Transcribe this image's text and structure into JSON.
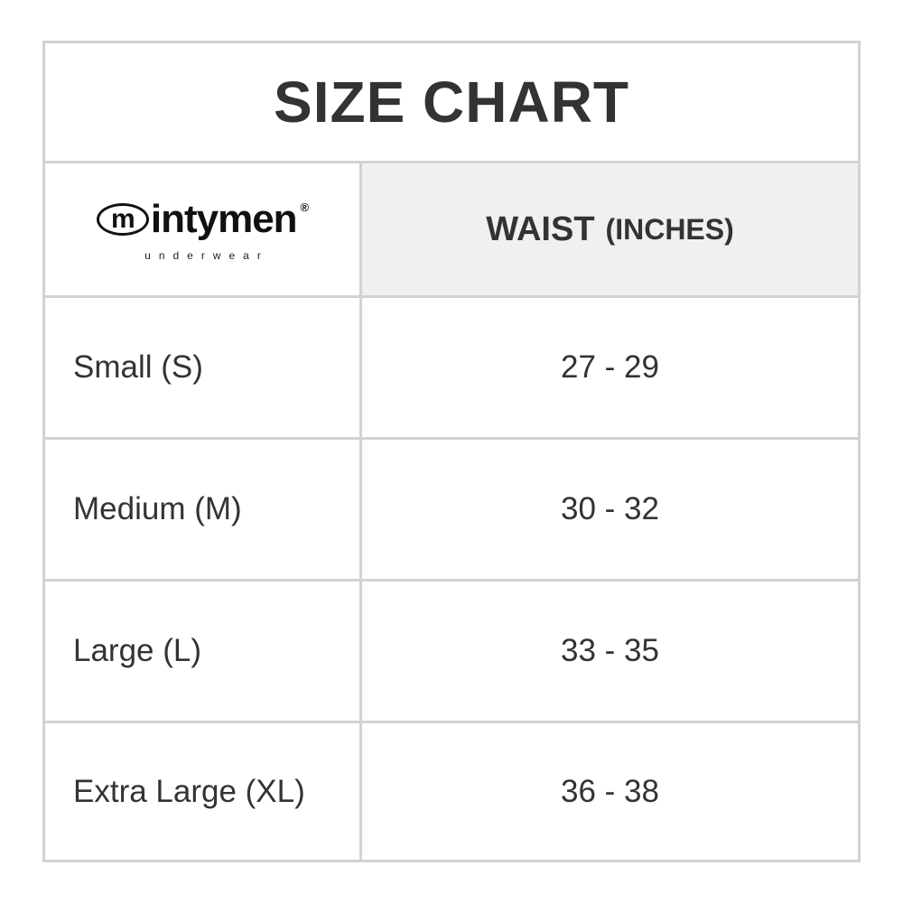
{
  "title": "SIZE CHART",
  "logo": {
    "brand": "intymen",
    "mark": "m",
    "registered": "®",
    "tagline": "underwear"
  },
  "header": {
    "measure": "WAIST",
    "unit": "(INCHES)"
  },
  "rows": [
    {
      "size": "Small (S)",
      "waist": "27 - 29"
    },
    {
      "size": "Medium (M)",
      "waist": "30 - 32"
    },
    {
      "size": "Large (L)",
      "waist": "33 - 35"
    },
    {
      "size": "Extra Large (XL)",
      "waist": "36 - 38"
    }
  ],
  "colors": {
    "border": "#d2d2d2",
    "header_bg": "#f0f0f0",
    "text": "#333333"
  }
}
